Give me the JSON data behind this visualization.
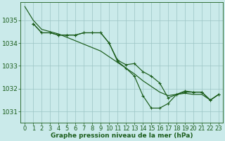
{
  "bg_color": "#caeaea",
  "grid_color": "#9cc4c4",
  "line_color": "#1a5c1a",
  "xlabel": "Graphe pression niveau de la mer (hPa)",
  "xlabel_fontsize": 6.5,
  "ylabel_fontsize": 6.5,
  "tick_fontsize": 6,
  "xlim": [
    -0.5,
    23.5
  ],
  "ylim": [
    1030.5,
    1035.8
  ],
  "yticks": [
    1031,
    1032,
    1033,
    1034,
    1035
  ],
  "xticks": [
    0,
    1,
    2,
    3,
    4,
    5,
    6,
    7,
    8,
    9,
    10,
    11,
    12,
    13,
    14,
    15,
    16,
    17,
    18,
    19,
    20,
    21,
    22,
    23
  ],
  "line1_x": [
    0,
    1,
    2,
    3,
    4,
    5,
    6,
    7,
    8,
    9,
    10,
    11,
    12,
    13,
    14,
    15,
    16,
    17,
    18,
    19,
    20,
    21,
    22,
    23
  ],
  "line1_y": [
    1035.6,
    1035.0,
    1034.6,
    1034.5,
    1034.4,
    1034.25,
    1034.1,
    1033.95,
    1033.8,
    1033.65,
    1033.4,
    1033.15,
    1032.9,
    1032.65,
    1032.35,
    1032.1,
    1031.85,
    1031.7,
    1031.75,
    1031.8,
    1031.75,
    1031.75,
    1031.5,
    1031.75
  ],
  "line2_x": [
    1,
    2,
    3,
    4,
    5,
    6,
    7,
    8,
    9,
    10,
    11,
    12,
    13,
    14,
    15,
    16,
    17,
    18,
    19,
    20,
    21,
    22,
    23
  ],
  "line2_y": [
    1034.85,
    1034.45,
    1034.45,
    1034.35,
    1034.35,
    1034.35,
    1034.45,
    1034.45,
    1034.45,
    1034.0,
    1033.25,
    1033.05,
    1033.1,
    1032.75,
    1032.55,
    1032.25,
    1031.6,
    1031.75,
    1031.9,
    1031.85,
    1031.85,
    1031.5,
    1031.75
  ],
  "line3_x": [
    1,
    2,
    3,
    4,
    5,
    6,
    7,
    8,
    9,
    10,
    11,
    12,
    13,
    14,
    15,
    16,
    17,
    18,
    19,
    20,
    21,
    22,
    23
  ],
  "line3_y": [
    1034.85,
    1034.45,
    1034.45,
    1034.35,
    1034.35,
    1034.35,
    1034.45,
    1034.45,
    1034.45,
    1034.0,
    1033.2,
    1032.9,
    1032.55,
    1031.7,
    1031.15,
    1031.15,
    1031.35,
    1031.75,
    1031.85,
    1031.85,
    1031.85,
    1031.5,
    1031.75
  ]
}
